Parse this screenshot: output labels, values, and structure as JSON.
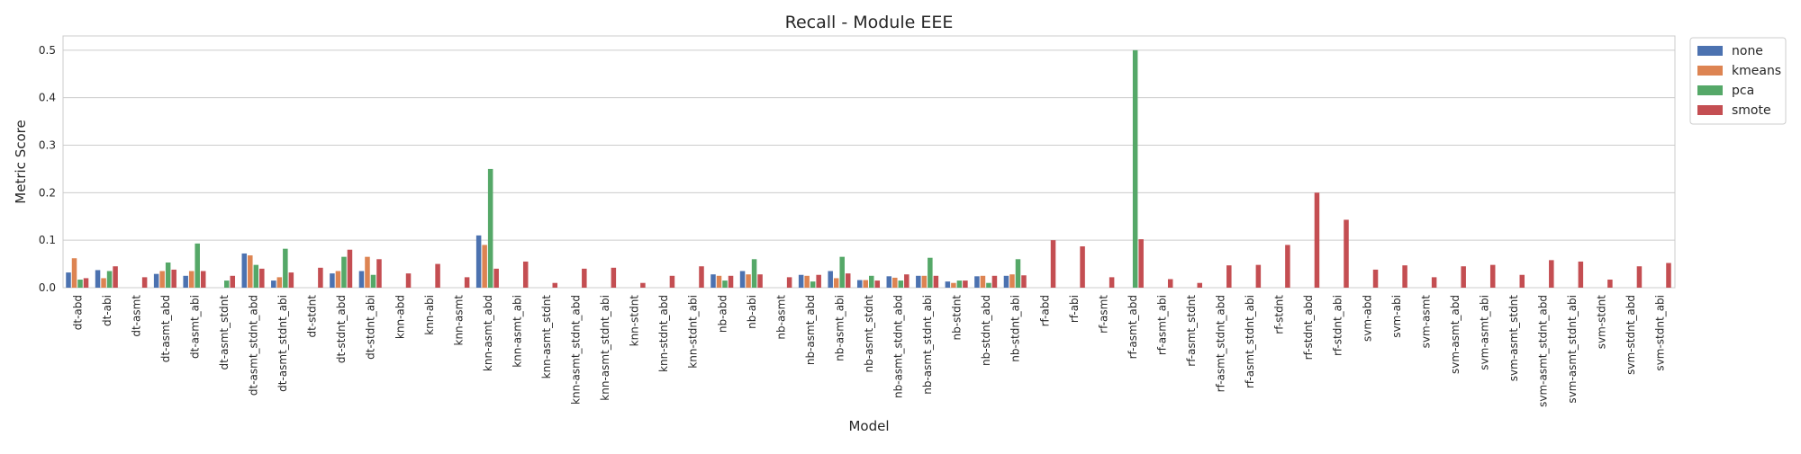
{
  "chart_data": {
    "type": "bar",
    "title": "Recall - Module EEE",
    "xlabel": "Model",
    "ylabel": "Metric Score",
    "ylim": [
      0,
      0.53
    ],
    "yticks": [
      0.0,
      0.1,
      0.2,
      0.3,
      0.4,
      0.5
    ],
    "ytick_labels": [
      "0.0",
      "0.1",
      "0.2",
      "0.3",
      "0.4",
      "0.5"
    ],
    "grid": true,
    "legend_position": "outside-top-right",
    "categories": [
      "dt-abd",
      "dt-abi",
      "dt-asmt",
      "dt-asmt_abd",
      "dt-asmt_abi",
      "dt-asmt_stdnt",
      "dt-asmt_stdnt_abd",
      "dt-asmt_stdnt_abi",
      "dt-stdnt",
      "dt-stdnt_abd",
      "dt-stdnt_abi",
      "knn-abd",
      "knn-abi",
      "knn-asmt",
      "knn-asmt_abd",
      "knn-asmt_abi",
      "knn-asmt_stdnt",
      "knn-asmt_stdnt_abd",
      "knn-asmt_stdnt_abi",
      "knn-stdnt",
      "knn-stdnt_abd",
      "knn-stdnt_abi",
      "nb-abd",
      "nb-abi",
      "nb-asmt",
      "nb-asmt_abd",
      "nb-asmt_abi",
      "nb-asmt_stdnt",
      "nb-asmt_stdnt_abd",
      "nb-asmt_stdnt_abi",
      "nb-stdnt",
      "nb-stdnt_abd",
      "nb-stdnt_abi",
      "rf-abd",
      "rf-abi",
      "rf-asmt",
      "rf-asmt_abd",
      "rf-asmt_abi",
      "rf-asmt_stdnt",
      "rf-asmt_stdnt_abd",
      "rf-asmt_stdnt_abi",
      "rf-stdnt",
      "rf-stdnt_abd",
      "rf-stdnt_abi",
      "svm-abd",
      "svm-abi",
      "svm-asmt",
      "svm-asmt_abd",
      "svm-asmt_abi",
      "svm-asmt_stdnt",
      "svm-asmt_stdnt_abd",
      "svm-asmt_stdnt_abi",
      "svm-stdnt",
      "svm-stdnt_abd",
      "svm-stdnt_abi"
    ],
    "series": [
      {
        "name": "none",
        "color": "#4c72b0",
        "values": [
          0.032,
          0.037,
          0,
          0.029,
          0.025,
          0,
          0.072,
          0.015,
          0,
          0.03,
          0.035,
          0,
          0,
          0,
          0.11,
          0,
          0,
          0,
          0,
          0,
          0,
          0,
          0.028,
          0.035,
          0,
          0.027,
          0.035,
          0.016,
          0.024,
          0.025,
          0.013,
          0.024,
          0.025,
          0,
          0,
          0,
          0,
          0,
          0,
          0,
          0,
          0,
          0,
          0,
          0,
          0,
          0,
          0,
          0,
          0,
          0,
          0,
          0,
          0,
          0
        ]
      },
      {
        "name": "kmeans",
        "color": "#dd8452",
        "values": [
          0.062,
          0.02,
          0,
          0.035,
          0.035,
          0,
          0.068,
          0.022,
          0,
          0.035,
          0.065,
          0,
          0,
          0,
          0.09,
          0,
          0,
          0,
          0,
          0,
          0,
          0,
          0.025,
          0.028,
          0,
          0.025,
          0.02,
          0.016,
          0.021,
          0.025,
          0.01,
          0.025,
          0.028,
          0,
          0,
          0,
          0,
          0,
          0,
          0,
          0,
          0,
          0,
          0,
          0,
          0,
          0,
          0,
          0,
          0,
          0,
          0,
          0,
          0,
          0
        ]
      },
      {
        "name": "pca",
        "color": "#55a868",
        "values": [
          0.017,
          0.035,
          0,
          0.053,
          0.093,
          0.015,
          0.048,
          0.082,
          0,
          0.065,
          0.027,
          0,
          0,
          0,
          0.25,
          0,
          0,
          0,
          0,
          0,
          0,
          0,
          0.015,
          0.06,
          0,
          0.013,
          0.065,
          0.025,
          0.015,
          0.063,
          0.015,
          0.01,
          0.06,
          0,
          0,
          0,
          0.5,
          0,
          0,
          0,
          0,
          0,
          0,
          0,
          0,
          0,
          0,
          0,
          0,
          0,
          0,
          0,
          0,
          0,
          0
        ]
      },
      {
        "name": "smote",
        "color": "#c44e52",
        "values": [
          0.02,
          0.045,
          0.022,
          0.038,
          0.035,
          0.025,
          0.04,
          0.032,
          0.042,
          0.08,
          0.06,
          0.03,
          0.05,
          0.022,
          0.04,
          0.055,
          0.01,
          0.04,
          0.042,
          0.01,
          0.025,
          0.045,
          0.025,
          0.028,
          0.022,
          0.027,
          0.03,
          0.015,
          0.028,
          0.025,
          0.015,
          0.025,
          0.026,
          0.1,
          0.087,
          0.022,
          0.102,
          0.018,
          0.01,
          0.047,
          0.048,
          0.09,
          0.2,
          0.143,
          0.038,
          0.047,
          0.022,
          0.045,
          0.048,
          0.027,
          0.058,
          0.055,
          0.017,
          0.045,
          0.052
        ]
      }
    ]
  }
}
